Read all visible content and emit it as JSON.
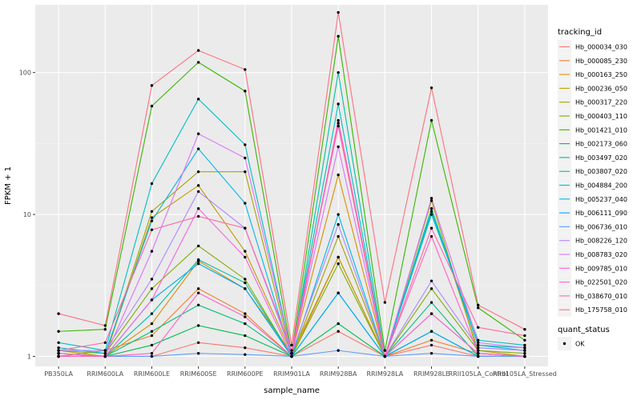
{
  "chart_data": {
    "type": "line",
    "xlabel": "sample_name",
    "ylabel": "FPKM + 1",
    "y_scale": "log10",
    "ylim": [
      0.85,
      300
    ],
    "y_ticks": [
      1,
      10,
      100
    ],
    "y_tick_labels": [
      "1",
      "10",
      "100"
    ],
    "grid": true,
    "legend_placement": "right",
    "categories": [
      "PB350LA",
      "RRIM600LA",
      "RRIM600LE",
      "RRIM600SE",
      "RRIM600PE",
      "RRIM901LA",
      "RRIM928BA",
      "RRIM928LA",
      "RRIM928LE",
      "RRII105LA_Control",
      "RRII105LA_Stressed"
    ],
    "series": [
      {
        "name": "Hb_000034_030",
        "color": "#F8766D",
        "values": [
          1.0,
          1.0,
          1.0,
          1.25,
          1.15,
          1.0,
          1.5,
          1.0,
          1.2,
          1.0,
          1.0
        ]
      },
      {
        "name": "Hb_000085_230",
        "color": "#EA8331",
        "values": [
          1.0,
          1.1,
          1.4,
          3.0,
          2.0,
          1.0,
          5.0,
          1.0,
          1.3,
          1.05,
          1.0
        ]
      },
      {
        "name": "Hb_000163_250",
        "color": "#D89000",
        "values": [
          1.05,
          1.0,
          1.7,
          4.7,
          3.0,
          1.05,
          19.0,
          1.0,
          2.0,
          1.05,
          1.0
        ]
      },
      {
        "name": "Hb_000236_050",
        "color": "#C09B00",
        "values": [
          1.1,
          1.0,
          9.5,
          16.0,
          5.5,
          1.05,
          5.0,
          1.0,
          11.0,
          1.1,
          1.0
        ]
      },
      {
        "name": "Hb_000317_220",
        "color": "#A3A500",
        "values": [
          1.05,
          1.0,
          10.5,
          20.0,
          20.0,
          1.0,
          7.0,
          1.0,
          12.5,
          1.05,
          1.0
        ]
      },
      {
        "name": "Hb_000403_110",
        "color": "#7CAE00",
        "values": [
          1.1,
          1.05,
          3.0,
          6.0,
          3.5,
          1.0,
          4.5,
          1.0,
          3.0,
          1.1,
          1.05
        ]
      },
      {
        "name": "Hb_001421_010",
        "color": "#39B600",
        "values": [
          1.5,
          1.55,
          58.0,
          118.0,
          74.0,
          1.05,
          180.0,
          1.1,
          46.0,
          2.2,
          1.3
        ]
      },
      {
        "name": "Hb_002173_060",
        "color": "#00BB4E",
        "values": [
          1.0,
          1.0,
          1.2,
          1.65,
          1.4,
          1.0,
          1.7,
          1.0,
          1.5,
          1.0,
          1.0
        ]
      },
      {
        "name": "Hb_003497_020",
        "color": "#00BF7D",
        "values": [
          1.0,
          1.0,
          1.5,
          2.3,
          1.7,
          1.0,
          2.8,
          1.0,
          2.4,
          1.0,
          1.0
        ]
      },
      {
        "name": "Hb_003807_020",
        "color": "#00C1A3",
        "values": [
          1.0,
          1.0,
          2.0,
          4.8,
          3.3,
          1.0,
          100.0,
          1.0,
          11.0,
          1.2,
          1.15
        ]
      },
      {
        "name": "Hb_004884_200",
        "color": "#00BFC4",
        "values": [
          1.25,
          1.1,
          16.5,
          65.0,
          31.0,
          1.05,
          60.0,
          1.0,
          10.0,
          1.3,
          1.2
        ]
      },
      {
        "name": "Hb_005237_040",
        "color": "#00B8E7",
        "values": [
          1.15,
          1.05,
          9.0,
          29.0,
          12.0,
          1.0,
          10.0,
          1.0,
          10.5,
          1.2,
          1.1
        ]
      },
      {
        "name": "Hb_006111_090",
        "color": "#00A9FF",
        "values": [
          1.0,
          1.0,
          2.5,
          4.5,
          3.0,
          1.0,
          2.8,
          1.0,
          1.5,
          1.0,
          1.0
        ]
      },
      {
        "name": "Hb_006736_010",
        "color": "#619CFF",
        "values": [
          1.0,
          1.0,
          1.0,
          1.05,
          1.03,
          1.0,
          1.1,
          1.0,
          1.05,
          1.0,
          1.0
        ]
      },
      {
        "name": "Hb_008226_120",
        "color": "#AE87FF",
        "values": [
          1.1,
          1.1,
          3.5,
          14.5,
          8.0,
          1.05,
          8.5,
          1.0,
          3.4,
          1.15,
          1.1
        ]
      },
      {
        "name": "Hb_008783_020",
        "color": "#DB72FB",
        "values": [
          1.05,
          1.0,
          5.5,
          37.0,
          25.0,
          1.05,
          30.0,
          1.0,
          13.0,
          1.25,
          1.15
        ]
      },
      {
        "name": "Hb_009785_010",
        "color": "#F564E3",
        "values": [
          1.0,
          1.0,
          2.5,
          11.0,
          5.0,
          1.0,
          44.0,
          1.0,
          2.0,
          1.05,
          1.0
        ]
      },
      {
        "name": "Hb_022501_020",
        "color": "#FF61C3",
        "values": [
          1.0,
          1.0,
          1.05,
          2.8,
          1.9,
          1.0,
          46.0,
          1.0,
          7.0,
          1.05,
          1.0
        ]
      },
      {
        "name": "Hb_038670_010",
        "color": "#FF67A4",
        "values": [
          1.1,
          1.25,
          7.8,
          9.7,
          8.0,
          1.1,
          42.0,
          1.0,
          8.0,
          1.6,
          1.4
        ]
      },
      {
        "name": "Hb_175758_010",
        "color": "#FC717F",
        "values": [
          2.0,
          1.65,
          81.0,
          143.0,
          105.0,
          1.2,
          265.0,
          2.4,
          78.0,
          2.3,
          1.55
        ]
      }
    ],
    "legend_title": "tracking_id",
    "legend2_title": "quant_status",
    "legend2_entries": [
      "OK"
    ]
  }
}
